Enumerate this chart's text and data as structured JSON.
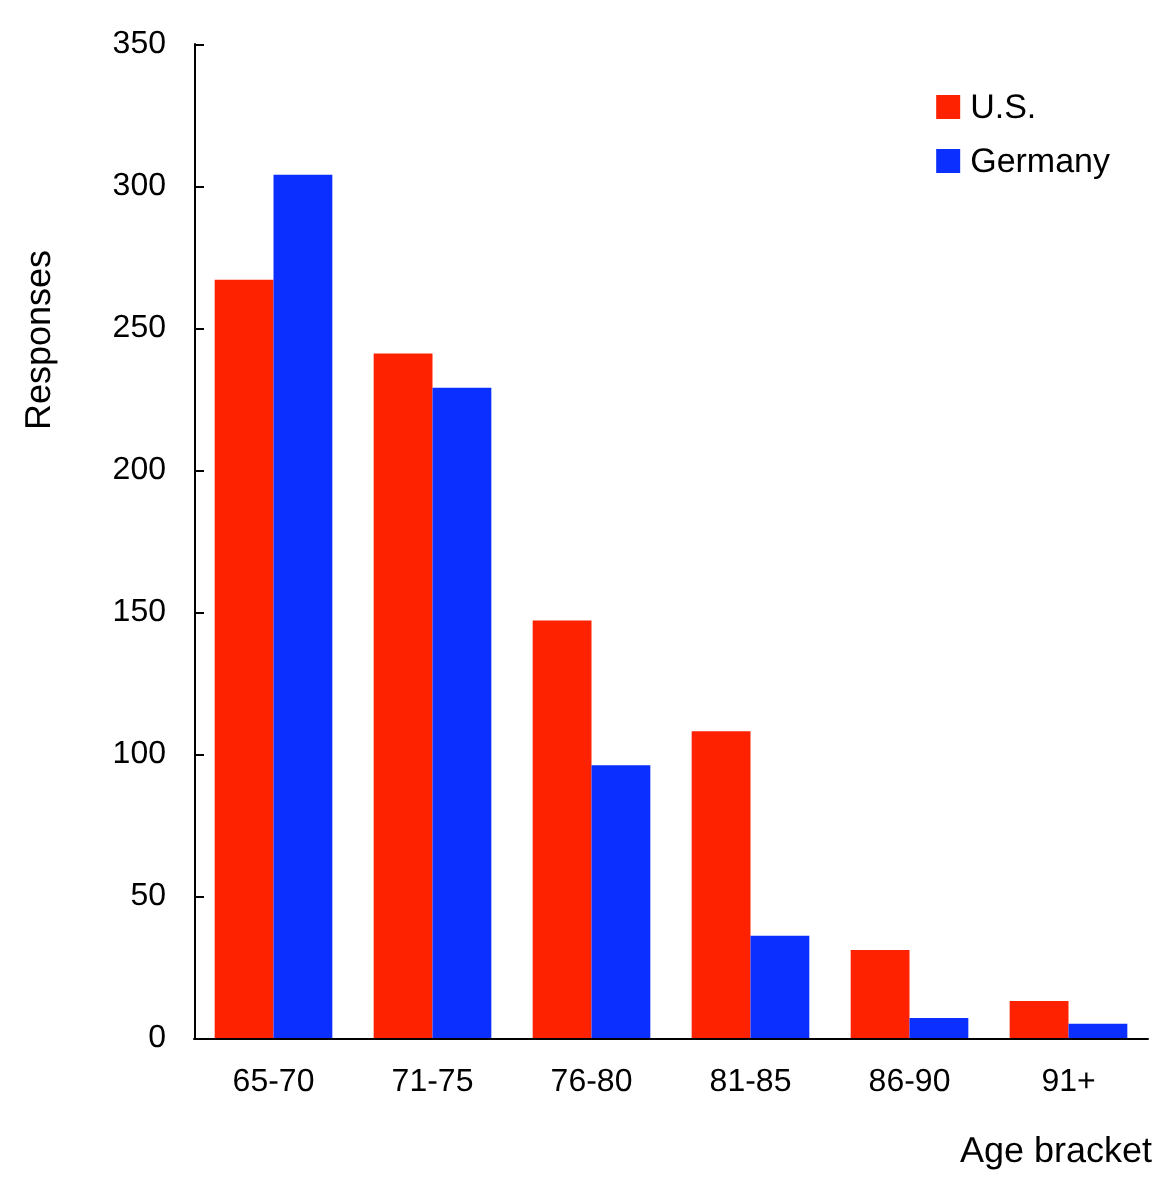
{
  "chart_data": {
    "type": "bar",
    "xlabel": "Age bracket",
    "ylabel": "Responses",
    "categories": [
      "65-70",
      "71-75",
      "76-80",
      "81-85",
      "86-90",
      "91+"
    ],
    "series": [
      {
        "name": "U.S.",
        "color": "#ff2200",
        "values": [
          267,
          241,
          147,
          108,
          31,
          13
        ]
      },
      {
        "name": "Germany",
        "color": "#0a2fff",
        "values": [
          304,
          229,
          96,
          36,
          7,
          5
        ]
      }
    ],
    "ylim": [
      0,
      350
    ],
    "yticks": [
      0,
      50,
      100,
      150,
      200,
      250,
      300,
      350
    ],
    "grid": false,
    "legend": "top right"
  }
}
